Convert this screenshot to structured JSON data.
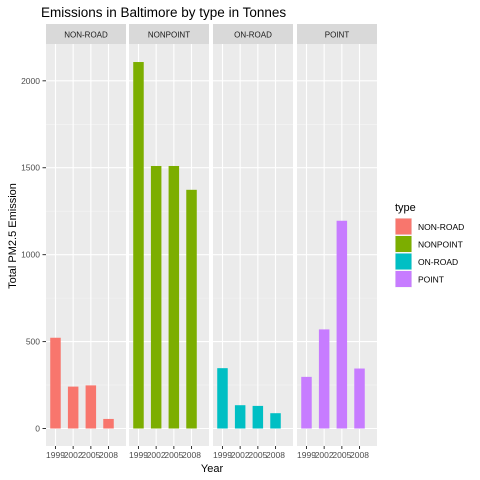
{
  "chart_data": {
    "type": "bar",
    "title": "Emissions in Baltimore by type in Tonnes",
    "xlabel": "Year",
    "ylabel": "Total PM2.5 Emission",
    "categories": [
      "1999",
      "2002",
      "2005",
      "2008"
    ],
    "ylim": [
      0,
      2200
    ],
    "yticks": [
      0,
      500,
      1000,
      1500,
      2000
    ],
    "legend_title": "type",
    "legend_position": "right",
    "grid": true,
    "facets": [
      {
        "name": "NON-ROAD",
        "color": "#F8766D",
        "values": [
          522,
          241,
          248,
          55
        ]
      },
      {
        "name": "NONPOINT",
        "color": "#7CAE00",
        "values": [
          2108,
          1510,
          1510,
          1373
        ]
      },
      {
        "name": "ON-ROAD",
        "color": "#00BFC4",
        "values": [
          347,
          134,
          130,
          88
        ]
      },
      {
        "name": "POINT",
        "color": "#C77CFF",
        "values": [
          297,
          570,
          1195,
          345
        ]
      }
    ]
  }
}
